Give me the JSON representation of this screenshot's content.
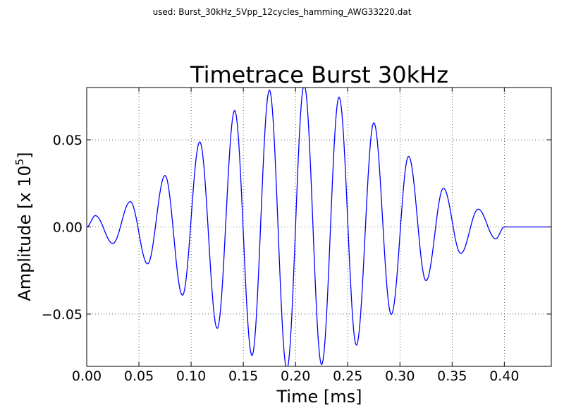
{
  "figure": {
    "suptitle": "used: Burst_30kHz_5Vpp_12cycles_hamming_AWG33220.dat"
  },
  "chart_data": {
    "type": "line",
    "title": "Timetrace Burst 30kHz",
    "xlabel": "Time [ms]",
    "ylabel": "Amplitude [x 10",
    "ylabel_exponent": "5",
    "ylabel_close": "]",
    "xlim": [
      0.0,
      0.445
    ],
    "ylim": [
      -0.08,
      0.08
    ],
    "xticks": [
      0.0,
      0.05,
      0.1,
      0.15,
      0.2,
      0.25,
      0.3,
      0.35,
      0.4
    ],
    "xtick_labels": [
      "0.00",
      "0.05",
      "0.10",
      "0.15",
      "0.20",
      "0.25",
      "0.30",
      "0.35",
      "0.40"
    ],
    "yticks": [
      0.05,
      0.0,
      -0.05
    ],
    "ytick_labels": [
      "0.05",
      "0.00",
      "−0.05"
    ],
    "grid": true,
    "color": "#0000ff",
    "series": [
      {
        "x": [
          0.0,
          0.0083,
          0.025,
          0.0417,
          0.0583,
          0.075,
          0.0917,
          0.1083,
          0.125,
          0.1417,
          0.1583,
          0.175,
          0.1917,
          0.2083,
          0.225,
          0.2417,
          0.2583,
          0.275,
          0.2917,
          0.3083,
          0.325,
          0.3417,
          0.3583,
          0.375,
          0.3917,
          0.4,
          0.445
        ],
        "y": [
          0.0,
          0.0065,
          -0.0095,
          0.0145,
          -0.0212,
          0.0295,
          -0.0392,
          0.0488,
          -0.0582,
          0.0668,
          -0.0738,
          0.0785,
          -0.0815,
          0.0815,
          -0.079,
          0.0745,
          -0.0678,
          0.0598,
          -0.0502,
          0.0405,
          -0.0308,
          0.0222,
          -0.0152,
          0.0102,
          -0.0068,
          0.0,
          0.0
        ]
      }
    ]
  }
}
